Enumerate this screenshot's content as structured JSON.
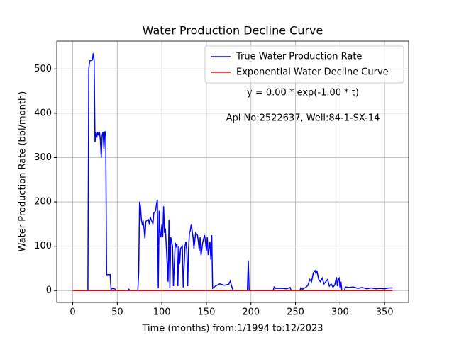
{
  "chart_data": {
    "type": "line",
    "title": "Water Production Decline Curve",
    "xlabel": "Time (months) from:1/1994 to:12/2023",
    "ylabel": "Water Production Rate (bbl/month)",
    "annotations": [
      "y = 0.00 * exp(-1.00 * t)",
      "Api No:2522637, Well:84-1-SX-14"
    ],
    "xlim": [
      -17.95,
      376.95
    ],
    "ylim": [
      -26.8,
      562.8
    ],
    "xticks": [
      0,
      50,
      100,
      150,
      200,
      250,
      300,
      350
    ],
    "yticks": [
      0,
      100,
      200,
      300,
      400,
      500
    ],
    "grid": true,
    "legend": "upper right",
    "series": [
      {
        "name": "True Water Production Rate",
        "color": "#0000ff",
        "x": [
          0,
          17,
          18,
          19,
          22,
          23,
          24,
          25,
          26,
          27,
          28,
          29,
          30,
          31,
          32,
          33,
          34,
          35,
          36,
          37,
          38,
          42,
          43,
          45,
          47,
          49,
          62,
          63,
          64,
          73,
          74,
          75,
          76,
          77,
          78,
          79,
          80,
          81,
          82,
          83,
          85,
          86,
          87,
          88,
          89,
          90,
          91,
          93,
          94,
          95,
          96,
          97,
          98,
          99,
          100,
          101,
          102,
          103,
          104,
          106,
          107,
          108,
          109,
          110,
          112,
          113,
          115,
          116,
          117,
          118,
          119,
          120,
          121,
          123,
          124,
          126,
          127,
          128,
          129,
          130,
          131,
          132,
          133,
          134,
          135,
          136,
          138,
          140,
          141,
          142,
          143,
          144,
          146,
          148,
          149,
          150,
          151,
          152,
          154,
          155,
          156,
          157,
          160,
          165,
          170,
          175,
          177,
          178,
          180,
          196,
          197,
          198,
          225,
          226,
          228,
          235,
          240,
          244,
          245,
          255,
          256,
          258,
          262,
          264,
          266,
          268,
          270,
          272,
          273,
          274,
          276,
          278,
          280,
          282,
          284,
          286,
          288,
          290,
          292,
          294,
          296,
          297,
          298,
          299,
          300,
          301,
          302,
          305,
          306,
          310,
          315,
          320,
          325,
          330,
          335,
          340,
          345,
          350,
          355,
          359
        ],
        "values": [
          0,
          0,
          500,
          518,
          520,
          535,
          520,
          335,
          358,
          345,
          358,
          350,
          358,
          340,
          300,
          350,
          358,
          320,
          358,
          358,
          36,
          36,
          3,
          5,
          4,
          0,
          0,
          3,
          0,
          0,
          40,
          200,
          190,
          160,
          150,
          155,
          140,
          118,
          155,
          158,
          160,
          150,
          165,
          160,
          155,
          150,
          175,
          180,
          195,
          205,
          5,
          180,
          130,
          120,
          150,
          120,
          190,
          130,
          140,
          60,
          20,
          160,
          5,
          120,
          100,
          10,
          108,
          100,
          105,
          10,
          100,
          60,
          95,
          100,
          7,
          100,
          110,
          90,
          10,
          95,
          130,
          135,
          150,
          135,
          120,
          95,
          130,
          125,
          110,
          90,
          120,
          80,
          110,
          125,
          110,
          90,
          120,
          80,
          110,
          70,
          125,
          5,
          10,
          15,
          12,
          14,
          22,
          12,
          0,
          0,
          68,
          0,
          0,
          8,
          5,
          5,
          4,
          7,
          0,
          0,
          6,
          3,
          8,
          12,
          25,
          20,
          40,
          45,
          38,
          45,
          25,
          20,
          28,
          15,
          20,
          25,
          10,
          15,
          8,
          12,
          30,
          10,
          25,
          28,
          5,
          20,
          0,
          0,
          8,
          7,
          8,
          5,
          7,
          4,
          6,
          4,
          5,
          4,
          6,
          6
        ]
      },
      {
        "name": "Exponential Water Decline Curve",
        "color": "#ff0000",
        "x": [
          0,
          359
        ],
        "values": [
          0,
          0
        ]
      }
    ]
  }
}
